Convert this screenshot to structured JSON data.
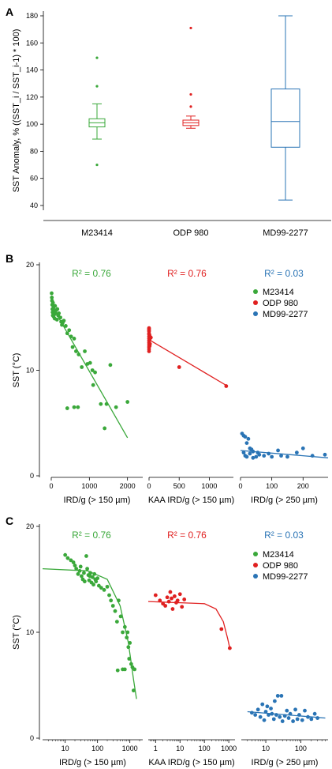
{
  "colors": {
    "M23414": "#3aa83a",
    "ODP 980": "#e02020",
    "MD99-2277": "#2a74b5",
    "axis": "#000000"
  },
  "chart_data": [
    {
      "panel": "A",
      "type": "box",
      "ylabel": "SST Anomaly, % ((SST_i / SST_i-1) * 100)",
      "ylim": [
        40,
        180
      ],
      "yticks": [
        40,
        60,
        80,
        100,
        120,
        140,
        160,
        180
      ],
      "categories": [
        "M23414",
        "ODP 980",
        "MD99-2277"
      ],
      "boxes": [
        {
          "name": "M23414",
          "min": 89,
          "q1": 98,
          "median": 101,
          "q3": 104,
          "max": 115,
          "outliers": [
            149,
            128,
            70
          ]
        },
        {
          "name": "ODP 980",
          "min": 97,
          "q1": 99,
          "median": 101,
          "q3": 103,
          "max": 106,
          "outliers": [
            171,
            122,
            113
          ]
        },
        {
          "name": "MD99-2277",
          "min": 44,
          "q1": 83,
          "median": 102,
          "q3": 126,
          "max": 180,
          "outliers": []
        }
      ]
    },
    {
      "panel": "B",
      "type": "scatter",
      "ylabel": "SST (°C)",
      "ylim": [
        0,
        20
      ],
      "yticks": [
        0,
        10,
        20
      ],
      "legend": [
        "M23414",
        "ODP 980",
        "MD99-2277"
      ],
      "subplots": [
        {
          "name": "M23414",
          "xlabel": "IRD/g (> 150 µm)",
          "xscale": "linear",
          "xlim": [
            0,
            2400
          ],
          "xticks": [
            0,
            1000,
            2000
          ],
          "r2": "R² = 0.76",
          "fit": [
            [
              0,
              16.2
            ],
            [
              2000,
              3.6
            ]
          ],
          "points": [
            [
              10,
              17.3
            ],
            [
              15,
              16.9
            ],
            [
              20,
              16.6
            ],
            [
              25,
              16.2
            ],
            [
              30,
              15.8
            ],
            [
              35,
              15.5
            ],
            [
              40,
              15.2
            ],
            [
              45,
              16.4
            ],
            [
              55,
              15.9
            ],
            [
              60,
              15.1
            ],
            [
              70,
              15.6
            ],
            [
              80,
              15.3
            ],
            [
              90,
              14.9
            ],
            [
              100,
              16.1
            ],
            [
              110,
              15.4
            ],
            [
              130,
              15.7
            ],
            [
              150,
              14.8
            ],
            [
              160,
              15.8
            ],
            [
              180,
              15.2
            ],
            [
              200,
              15.4
            ],
            [
              240,
              15.0
            ],
            [
              260,
              14.6
            ],
            [
              280,
              14.3
            ],
            [
              300,
              14.5
            ],
            [
              330,
              14.7
            ],
            [
              380,
              14.2
            ],
            [
              420,
              13.5
            ],
            [
              470,
              13.8
            ],
            [
              520,
              13.2
            ],
            [
              560,
              12.2
            ],
            [
              600,
              13.0
            ],
            [
              650,
              11.8
            ],
            [
              720,
              11.5
            ],
            [
              800,
              10.3
            ],
            [
              880,
              11.8
            ],
            [
              950,
              10.6
            ],
            [
              1020,
              10.7
            ],
            [
              1080,
              10.0
            ],
            [
              1150,
              9.8
            ],
            [
              420,
              6.4
            ],
            [
              600,
              6.5
            ],
            [
              700,
              6.5
            ],
            [
              1100,
              8.6
            ],
            [
              1300,
              6.8
            ],
            [
              1400,
              4.5
            ],
            [
              1450,
              6.8
            ],
            [
              1550,
              10.5
            ],
            [
              1700,
              6.5
            ],
            [
              2000,
              7.0
            ]
          ]
        },
        {
          "name": "ODP 980",
          "xlabel": "KAA IRD/g (> 150 µm)",
          "xscale": "linear",
          "xlim": [
            0,
            1400
          ],
          "xticks": [
            0,
            500,
            1000
          ],
          "r2": "R² = 0.76",
          "fit": [
            [
              0,
              12.9
            ],
            [
              1300,
              8.5
            ]
          ],
          "points": [
            [
              0,
              14.0
            ],
            [
              0,
              13.9
            ],
            [
              0,
              13.8
            ],
            [
              0,
              13.7
            ],
            [
              0,
              13.5
            ],
            [
              0,
              13.4
            ],
            [
              0,
              13.2
            ],
            [
              0,
              13.0
            ],
            [
              0,
              12.8
            ],
            [
              0,
              12.6
            ],
            [
              0,
              12.4
            ],
            [
              0,
              12.2
            ],
            [
              0,
              12.0
            ],
            [
              0,
              11.8
            ],
            [
              10,
              13.3
            ],
            [
              10,
              12.9
            ],
            [
              15,
              12.5
            ],
            [
              10,
              12.3
            ],
            [
              30,
              13.1
            ],
            [
              500,
              10.3
            ],
            [
              1280,
              8.5
            ]
          ]
        },
        {
          "name": "MD99-2277",
          "xlabel": "IRD/g (> 250 µm)",
          "xscale": "linear",
          "xlim": [
            0,
            280
          ],
          "xticks": [
            0,
            100,
            200
          ],
          "r2": "R² = 0.03",
          "fit": [
            [
              0,
              2.4
            ],
            [
              280,
              1.7
            ]
          ],
          "points": [
            [
              5,
              4.0
            ],
            [
              10,
              3.8
            ],
            [
              15,
              3.7
            ],
            [
              20,
              3.1
            ],
            [
              25,
              3.5
            ],
            [
              30,
              2.6
            ],
            [
              35,
              2.5
            ],
            [
              40,
              2.3
            ],
            [
              10,
              2.2
            ],
            [
              15,
              1.9
            ],
            [
              20,
              1.8
            ],
            [
              30,
              2.1
            ],
            [
              40,
              1.7
            ],
            [
              50,
              1.8
            ],
            [
              55,
              2.2
            ],
            [
              60,
              2.0
            ],
            [
              75,
              1.9
            ],
            [
              90,
              2.1
            ],
            [
              100,
              1.8
            ],
            [
              120,
              2.4
            ],
            [
              130,
              1.9
            ],
            [
              150,
              1.8
            ],
            [
              180,
              2.2
            ],
            [
              200,
              2.6
            ],
            [
              230,
              1.9
            ],
            [
              270,
              2.0
            ]
          ]
        }
      ]
    },
    {
      "panel": "C",
      "type": "scatter",
      "ylabel": "SST (°C)",
      "ylim": [
        0,
        20
      ],
      "yticks": [
        0,
        10,
        20
      ],
      "legend": [
        "M23414",
        "ODP 980",
        "MD99-2277"
      ],
      "subplots": [
        {
          "name": "M23414",
          "xlabel": "IRD/g (> 150 µm)",
          "xscale": "log",
          "xlim": [
            2,
            2500
          ],
          "xticks": [
            10,
            100,
            1000
          ],
          "r2": "R² = 0.76",
          "fit": [
            [
              2,
              16.0
            ],
            [
              50,
              15.8
            ],
            [
              200,
              15.0
            ],
            [
              500,
              12.5
            ],
            [
              900,
              9.0
            ],
            [
              1300,
              5.5
            ],
            [
              1600,
              3.7
            ]
          ],
          "points": [
            [
              10,
              17.3
            ],
            [
              12,
              17.0
            ],
            [
              15,
              16.8
            ],
            [
              18,
              16.6
            ],
            [
              20,
              16.3
            ],
            [
              22,
              16.0
            ],
            [
              25,
              15.5
            ],
            [
              28,
              15.8
            ],
            [
              30,
              16.2
            ],
            [
              32,
              15.3
            ],
            [
              35,
              15.0
            ],
            [
              38,
              15.6
            ],
            [
              40,
              14.8
            ],
            [
              45,
              17.2
            ],
            [
              48,
              16.0
            ],
            [
              52,
              15.4
            ],
            [
              55,
              14.9
            ],
            [
              58,
              15.3
            ],
            [
              60,
              15.6
            ],
            [
              65,
              14.7
            ],
            [
              70,
              15.2
            ],
            [
              75,
              14.5
            ],
            [
              80,
              15.5
            ],
            [
              85,
              15.0
            ],
            [
              90,
              14.8
            ],
            [
              100,
              15.1
            ],
            [
              110,
              14.4
            ],
            [
              130,
              14.2
            ],
            [
              160,
              14.0
            ],
            [
              200,
              14.3
            ],
            [
              230,
              13.5
            ],
            [
              260,
              13.0
            ],
            [
              300,
              12.5
            ],
            [
              350,
              12.0
            ],
            [
              400,
              11.0
            ],
            [
              450,
              13.0
            ],
            [
              520,
              11.5
            ],
            [
              600,
              10.0
            ],
            [
              700,
              10.5
            ],
            [
              800,
              9.5
            ],
            [
              850,
              10.0
            ],
            [
              900,
              8.6
            ],
            [
              950,
              7.5
            ],
            [
              1000,
              9.0
            ],
            [
              1100,
              7.0
            ],
            [
              1200,
              6.7
            ],
            [
              1300,
              4.5
            ],
            [
              1400,
              6.5
            ],
            [
              420,
              6.4
            ],
            [
              600,
              6.5
            ],
            [
              700,
              6.5
            ]
          ]
        },
        {
          "name": "ODP 980",
          "xlabel": "KAA IRD/g (> 150 µm)",
          "xscale": "log",
          "xlim": [
            0.5,
            1800
          ],
          "xticks": [
            1,
            10,
            100,
            1000
          ],
          "r2": "R² = 0.76",
          "fit": [
            [
              0.5,
              12.9
            ],
            [
              100,
              12.7
            ],
            [
              300,
              12.2
            ],
            [
              600,
              11.0
            ],
            [
              900,
              9.4
            ],
            [
              1100,
              8.5
            ]
          ],
          "points": [
            [
              1,
              13.5
            ],
            [
              1.5,
              13.0
            ],
            [
              2,
              12.7
            ],
            [
              2.5,
              12.5
            ],
            [
              3,
              13.3
            ],
            [
              3.5,
              12.9
            ],
            [
              4,
              13.8
            ],
            [
              4.5,
              13.2
            ],
            [
              5,
              12.2
            ],
            [
              6,
              13.4
            ],
            [
              7,
              12.8
            ],
            [
              8,
              13.0
            ],
            [
              10,
              13.6
            ],
            [
              12,
              12.4
            ],
            [
              15,
              13.1
            ],
            [
              500,
              10.3
            ],
            [
              1100,
              8.5
            ]
          ]
        },
        {
          "name": "MD99-2277",
          "xlabel": "IRD/g (> 250 µm)",
          "xscale": "log",
          "xlim": [
            2,
            600
          ],
          "xticks": [
            10,
            100
          ],
          "r2": "R² = 0.03",
          "fit": [
            [
              3,
              2.5
            ],
            [
              500,
              1.9
            ]
          ],
          "points": [
            [
              4,
              2.4
            ],
            [
              5,
              2.2
            ],
            [
              6,
              2.7
            ],
            [
              7,
              2.0
            ],
            [
              8,
              3.2
            ],
            [
              9,
              1.7
            ],
            [
              10,
              2.5
            ],
            [
              11,
              3.0
            ],
            [
              12,
              2.2
            ],
            [
              14,
              2.8
            ],
            [
              15,
              2.3
            ],
            [
              17,
              1.8
            ],
            [
              18,
              3.5
            ],
            [
              20,
              2.2
            ],
            [
              22,
              4.0
            ],
            [
              25,
              2.0
            ],
            [
              28,
              4.0
            ],
            [
              30,
              1.6
            ],
            [
              35,
              2.1
            ],
            [
              40,
              2.6
            ],
            [
              45,
              1.9
            ],
            [
              50,
              2.3
            ],
            [
              60,
              1.6
            ],
            [
              70,
              2.7
            ],
            [
              80,
              1.8
            ],
            [
              90,
              2.2
            ],
            [
              110,
              1.7
            ],
            [
              130,
              2.6
            ],
            [
              160,
              2.0
            ],
            [
              200,
              1.8
            ],
            [
              250,
              2.3
            ],
            [
              300,
              1.9
            ]
          ]
        }
      ]
    }
  ]
}
